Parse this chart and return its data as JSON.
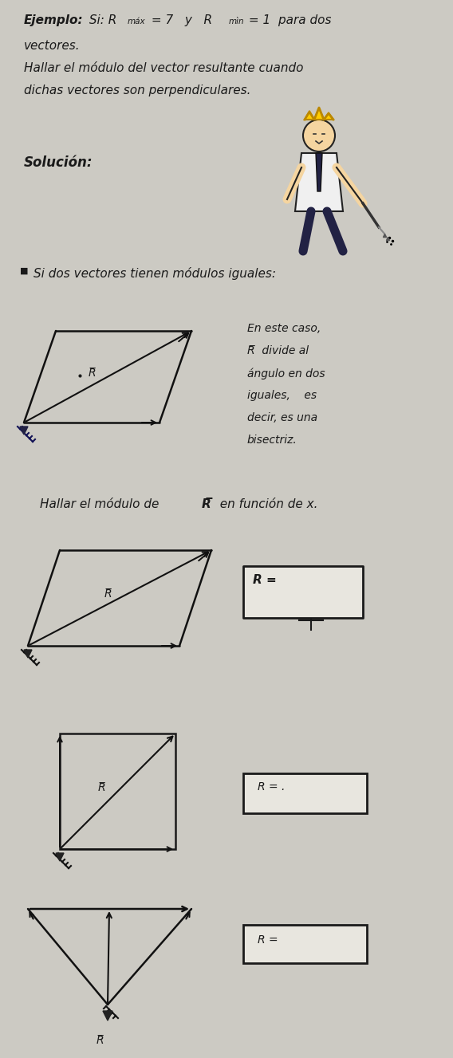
{
  "bg_color": "#cccac3",
  "text_color": "#1a1a1a",
  "box_color": "#e8e6df",
  "font_size_main": 11,
  "font_size_small": 10,
  "font_size_sub": 7,
  "line1a": "Ejemplo:",
  "line1b": " Si: R",
  "line1c": "máx",
  "line1d": " = 7   y   R",
  "line1e": "mìn",
  "line1f": " = 1  para dos",
  "line2": "vectores.",
  "line3": "Hallar el módulo del vector resultante cuando",
  "line4": "dichas vectores son perpendiculares.",
  "solucion": "Solución:",
  "bullet": "■",
  "bullet_text": " Si dos vectores tienen módulos iguales:",
  "side1": "En este caso,",
  "side2": "R̅  divide al",
  "side3": "ángulo en dos",
  "side4": "iguales,    es",
  "side5": "decir, es una",
  "side6": "bisectriz.",
  "hallar": "Hallar el módulo de R̅  en función de x.",
  "r_bar": "R̅",
  "r_eq": "R =",
  "r_eq2": "R = .",
  "r_eq3": "R ="
}
